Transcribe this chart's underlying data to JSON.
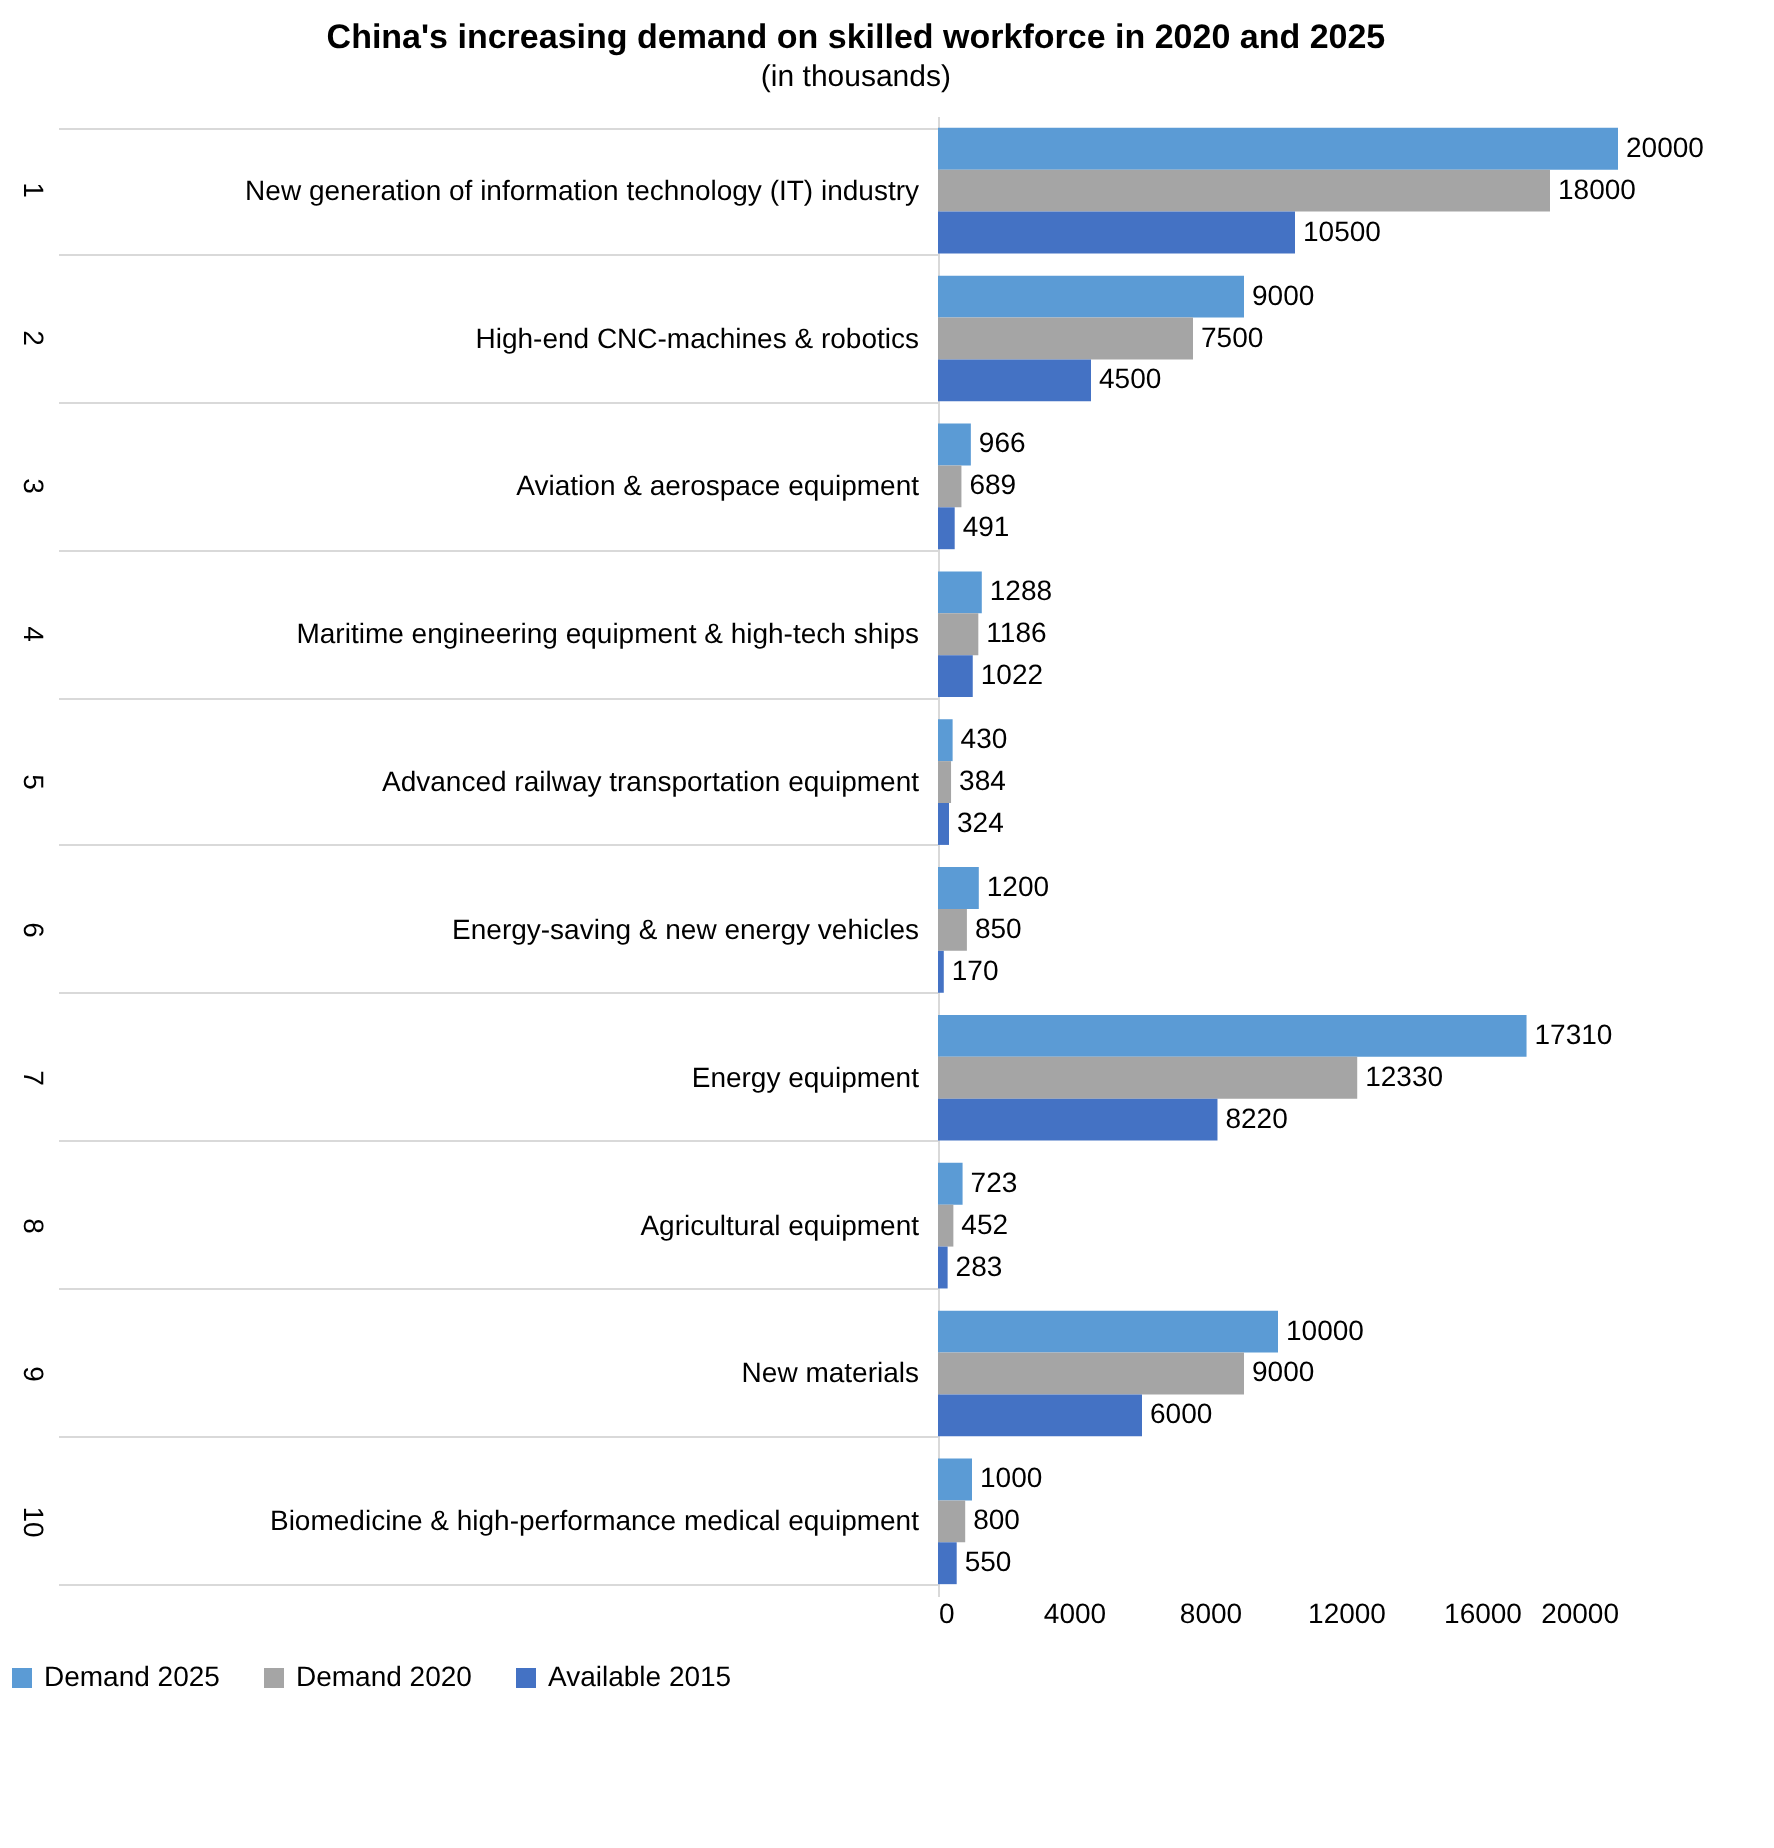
{
  "chart_data": {
    "type": "bar",
    "orientation": "horizontal",
    "title": "China's increasing demand on skilled workforce in 2020 and 2025",
    "subtitle": "(in thousands)",
    "categories": [
      "New generation of information technology (IT) industry",
      "High-end CNC-machines & robotics",
      "Aviation & aerospace equipment",
      "Maritime engineering equipment & high-tech ships",
      "Advanced railway transportation equipment",
      "Energy-saving & new energy vehicles",
      "Energy equipment",
      "Agricultural equipment",
      "New materials",
      "Biomedicine & high-performance medical equipment"
    ],
    "annotations": [
      "1",
      "2",
      "3",
      "4",
      "5",
      "6",
      "7",
      "8",
      "9",
      "10"
    ],
    "series": [
      {
        "name": "Demand 2025",
        "color": "#5b9bd5",
        "values": [
          20000,
          9000,
          966,
          1288,
          430,
          1200,
          17310,
          723,
          10000,
          1000
        ]
      },
      {
        "name": "Demand 2020",
        "color": "#a5a5a5",
        "values": [
          18000,
          7500,
          689,
          1186,
          384,
          850,
          12330,
          452,
          9000,
          800
        ]
      },
      {
        "name": "Available 2015",
        "color": "#4472c4",
        "values": [
          10500,
          4500,
          491,
          1022,
          324,
          170,
          8220,
          283,
          6000,
          550
        ]
      }
    ],
    "xlim": [
      0,
      20000
    ],
    "xticks": [
      0,
      4000,
      8000,
      12000,
      16000,
      20000
    ],
    "data_labels": true,
    "legend": "bottom",
    "grid": false
  }
}
